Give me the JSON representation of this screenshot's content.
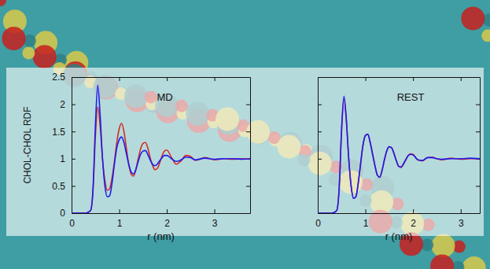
{
  "chart_data": [
    {
      "type": "line",
      "title": "MD",
      "x_label": "r (nm)",
      "y_label": "CHOL-CHOL RDF",
      "x": [
        0,
        0.3,
        0.4,
        0.45,
        0.5,
        0.55,
        0.6,
        0.65,
        0.7,
        0.75,
        0.8,
        0.85,
        0.9,
        0.95,
        1.0,
        1.05,
        1.1,
        1.15,
        1.2,
        1.25,
        1.3,
        1.35,
        1.4,
        1.45,
        1.5,
        1.55,
        1.6,
        1.65,
        1.7,
        1.75,
        1.8,
        1.85,
        1.9,
        1.95,
        2.0,
        2.1,
        2.2,
        2.3,
        2.4,
        2.5,
        2.6,
        2.8,
        3.0,
        3.2,
        3.4,
        3.6,
        3.75
      ],
      "series": [
        {
          "color": "#d42a1e",
          "values": [
            0,
            0,
            0.05,
            0.4,
            1.4,
            1.95,
            1.6,
            1.0,
            0.6,
            0.42,
            0.45,
            0.65,
            0.95,
            1.3,
            1.55,
            1.65,
            1.5,
            1.2,
            0.9,
            0.72,
            0.68,
            0.8,
            1.0,
            1.18,
            1.28,
            1.3,
            1.2,
            1.02,
            0.88,
            0.8,
            0.82,
            0.92,
            1.05,
            1.14,
            1.16,
            1.02,
            0.9,
            0.96,
            1.06,
            1.04,
            0.97,
            1.02,
            0.98,
            1.0,
            0.99,
            1.0,
            0.99
          ]
        },
        {
          "color": "#1c1cf0",
          "values": [
            0,
            0,
            0.05,
            0.45,
            1.6,
            2.35,
            1.8,
            1.0,
            0.5,
            0.3,
            0.32,
            0.55,
            0.9,
            1.2,
            1.35,
            1.4,
            1.3,
            1.1,
            0.9,
            0.76,
            0.72,
            0.8,
            0.95,
            1.08,
            1.14,
            1.15,
            1.08,
            0.98,
            0.9,
            0.87,
            0.9,
            0.96,
            1.02,
            1.06,
            1.06,
            1.0,
            0.95,
            0.98,
            1.03,
            1.02,
            0.98,
            1.01,
            0.99,
            1.0,
            1.0,
            0.99,
            1.0
          ]
        }
      ],
      "xlim": [
        0,
        3.75
      ],
      "ylim": [
        0,
        2.5
      ],
      "xticks": [
        0,
        1,
        2,
        3
      ],
      "yticks": [
        0,
        0.5,
        1,
        1.5,
        2,
        2.5
      ]
    },
    {
      "type": "line",
      "title": "REST",
      "x_label": "r (nm)",
      "x": [
        0,
        0.3,
        0.4,
        0.45,
        0.5,
        0.55,
        0.6,
        0.65,
        0.7,
        0.75,
        0.8,
        0.85,
        0.9,
        0.95,
        1.0,
        1.05,
        1.1,
        1.15,
        1.2,
        1.25,
        1.3,
        1.35,
        1.4,
        1.45,
        1.5,
        1.55,
        1.6,
        1.65,
        1.7,
        1.75,
        1.8,
        1.85,
        1.9,
        1.95,
        2.0,
        2.1,
        2.2,
        2.3,
        2.4,
        2.5,
        2.6,
        2.8,
        3.0,
        3.2,
        3.4
      ],
      "series": [
        {
          "color": "#d42a1e",
          "values": [
            0,
            0,
            0.05,
            0.45,
            1.5,
            2.1,
            1.7,
            1.0,
            0.5,
            0.28,
            0.3,
            0.55,
            0.9,
            1.25,
            1.42,
            1.45,
            1.3,
            1.1,
            0.88,
            0.7,
            0.66,
            0.78,
            0.98,
            1.15,
            1.22,
            1.2,
            1.1,
            0.96,
            0.86,
            0.84,
            0.9,
            0.98,
            1.06,
            1.09,
            1.08,
            0.98,
            0.96,
            1.02,
            1.03,
            1.0,
            0.98,
            1.01,
            0.99,
            1.0,
            1.0
          ]
        },
        {
          "color": "#1c1cf0",
          "values": [
            0,
            0,
            0.05,
            0.48,
            1.55,
            2.15,
            1.72,
            1.0,
            0.5,
            0.27,
            0.3,
            0.56,
            0.92,
            1.26,
            1.43,
            1.45,
            1.3,
            1.08,
            0.87,
            0.7,
            0.66,
            0.79,
            0.99,
            1.15,
            1.22,
            1.2,
            1.09,
            0.96,
            0.86,
            0.85,
            0.91,
            0.99,
            1.06,
            1.08,
            1.07,
            0.98,
            0.97,
            1.02,
            1.02,
            1.0,
            0.99,
            1.0,
            1.0,
            1.01,
            1.0
          ]
        }
      ],
      "xlim": [
        0,
        3.4
      ],
      "ylim": [
        0,
        2.5
      ],
      "xticks": [
        0,
        1,
        2,
        3
      ],
      "yticks": [
        0,
        0.5,
        1,
        1.5,
        2,
        2.5
      ],
      "tick_labels": "x"
    }
  ]
}
